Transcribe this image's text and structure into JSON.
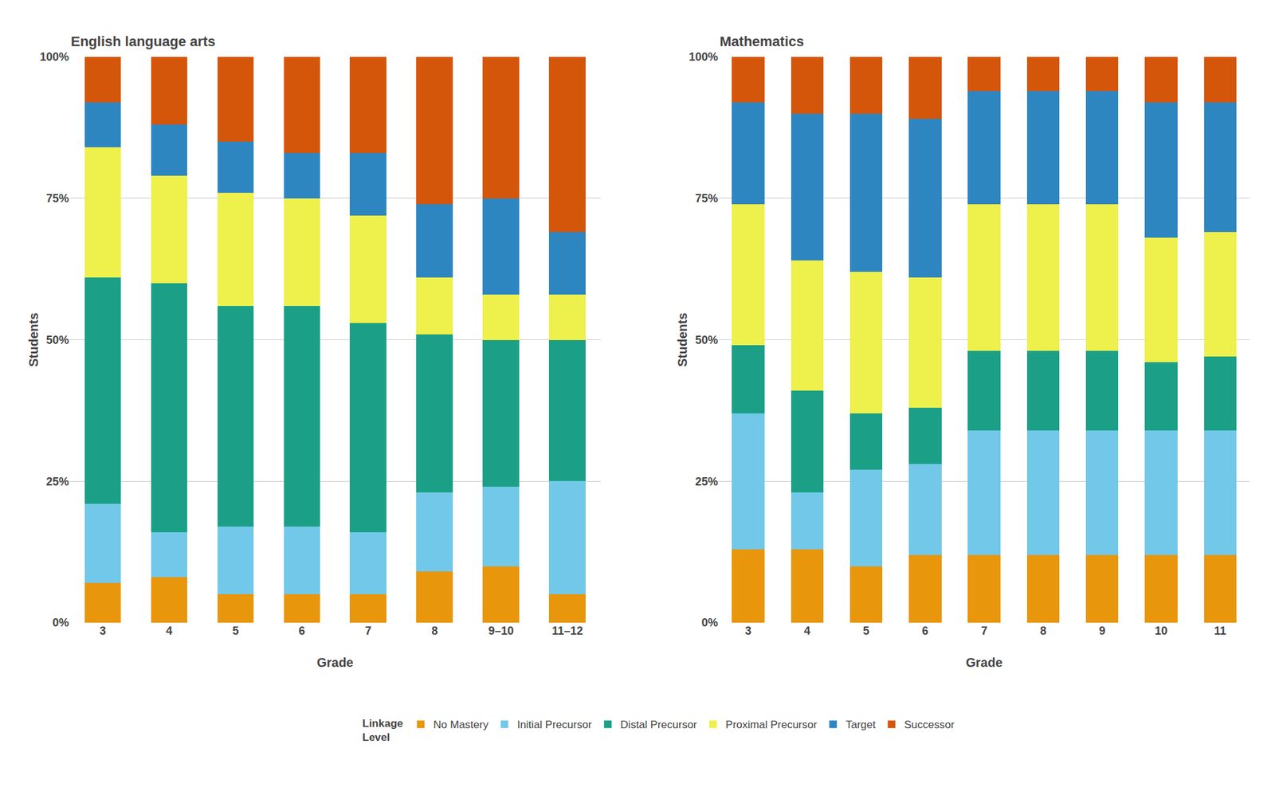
{
  "chart_data": [
    {
      "type": "bar",
      "stacked": true,
      "title": "English language arts",
      "x_label": "Grade",
      "y_label": "Students",
      "categories": [
        "3",
        "4",
        "5",
        "6",
        "7",
        "8",
        "9–10",
        "11–12"
      ],
      "series": [
        {
          "name": "No Mastery",
          "color": "#E8960C",
          "values": [
            7,
            8,
            5,
            5,
            5,
            9,
            10,
            5
          ]
        },
        {
          "name": "Initial Precursor",
          "color": "#72C8E8",
          "values": [
            14,
            8,
            12,
            12,
            11,
            14,
            14,
            20
          ]
        },
        {
          "name": "Distal Precursor",
          "color": "#1BA087",
          "values": [
            40,
            44,
            39,
            39,
            37,
            28,
            26,
            25
          ]
        },
        {
          "name": "Proximal Precursor",
          "color": "#EEF04C",
          "values": [
            23,
            19,
            20,
            19,
            19,
            10,
            8,
            8
          ]
        },
        {
          "name": "Target",
          "color": "#2E86C1",
          "values": [
            8,
            9,
            9,
            8,
            11,
            13,
            17,
            11
          ]
        },
        {
          "name": "Successor",
          "color": "#D4560A",
          "values": [
            8,
            12,
            15,
            17,
            17,
            26,
            25,
            31
          ]
        }
      ],
      "ylim": [
        0,
        100
      ],
      "yticks": [
        {
          "value": 0,
          "label": "0%"
        },
        {
          "value": 25,
          "label": "25%"
        },
        {
          "value": 50,
          "label": "50%"
        },
        {
          "value": 75,
          "label": "75%"
        },
        {
          "value": 100,
          "label": "100%"
        }
      ],
      "grid": true,
      "legend": "bottom",
      "legend_title": "Linkage\nLevel"
    },
    {
      "type": "bar",
      "stacked": true,
      "title": "Mathematics",
      "x_label": "Grade",
      "y_label": "Students",
      "categories": [
        "3",
        "4",
        "5",
        "6",
        "7",
        "8",
        "9",
        "10",
        "11"
      ],
      "series": [
        {
          "name": "No Mastery",
          "color": "#E8960C",
          "values": [
            13,
            13,
            10,
            12,
            12,
            12,
            12,
            12,
            12
          ]
        },
        {
          "name": "Initial Precursor",
          "color": "#72C8E8",
          "values": [
            24,
            10,
            17,
            16,
            22,
            22,
            22,
            22,
            22
          ]
        },
        {
          "name": "Distal Precursor",
          "color": "#1BA087",
          "values": [
            12,
            18,
            10,
            10,
            14,
            14,
            14,
            12,
            13
          ]
        },
        {
          "name": "Proximal Precursor",
          "color": "#EEF04C",
          "values": [
            25,
            23,
            25,
            23,
            26,
            26,
            26,
            22,
            22
          ]
        },
        {
          "name": "Target",
          "color": "#2E86C1",
          "values": [
            18,
            26,
            28,
            28,
            20,
            20,
            20,
            24,
            23
          ]
        },
        {
          "name": "Successor",
          "color": "#D4560A",
          "values": [
            8,
            10,
            10,
            11,
            6,
            6,
            6,
            8,
            8
          ]
        }
      ],
      "ylim": [
        0,
        100
      ],
      "yticks": [
        {
          "value": 0,
          "label": "0%"
        },
        {
          "value": 25,
          "label": "25%"
        },
        {
          "value": 50,
          "label": "50%"
        },
        {
          "value": 75,
          "label": "75%"
        },
        {
          "value": 100,
          "label": "100%"
        }
      ],
      "grid": true,
      "legend": "bottom",
      "legend_title": "Linkage\nLevel"
    }
  ]
}
